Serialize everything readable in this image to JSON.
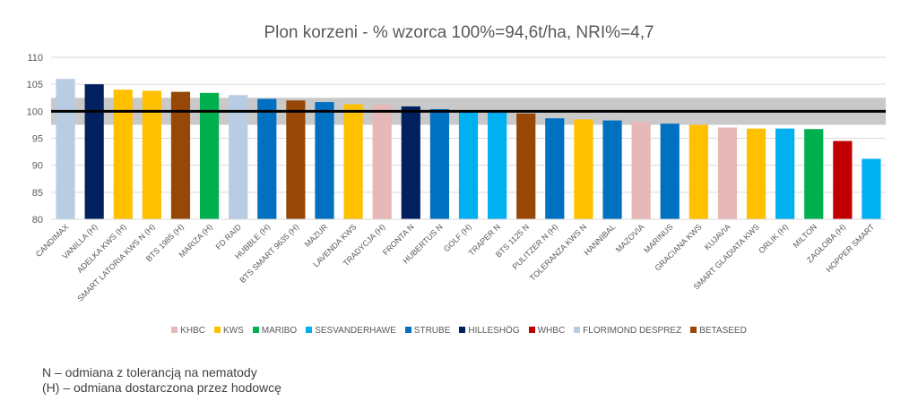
{
  "chart_data": {
    "type": "bar",
    "title": "Plon korzeni - % wzorca 100%=94,6t/ha, NRI%=4,7",
    "ylim": [
      80,
      110
    ],
    "yticks": [
      80,
      85,
      90,
      95,
      100,
      105,
      110
    ],
    "reference_line": 100,
    "reference_band": [
      97.5,
      102.5
    ],
    "colors": {
      "KHBC": "#E6B8B7",
      "KWS": "#FFC000",
      "MARIBO": "#00B050",
      "SESVANDERHAWE": "#00B0F0",
      "STRUBE": "#0070C0",
      "HILLESHÖG": "#002060",
      "WHBC": "#C00000",
      "FLORIMOND DESPREZ": "#B8CCE4",
      "BETASEED": "#974706"
    },
    "legend": [
      "KHBC",
      "KWS",
      "MARIBO",
      "SESVANDERHAWE",
      "STRUBE",
      "HILLESHÖG",
      "WHBC",
      "FLORIMOND DESPREZ",
      "BETASEED"
    ],
    "categories": [
      "CANDIMAX",
      "VANILLA (H)",
      "ADELKA KWS (H)",
      "SMART LATORIA KWS N (H)",
      "BTS 1985 (H)",
      "MARIZA (H)",
      "FD RAID",
      "HUBBLE (H)",
      "BTS SMART 9635 (H)",
      "MAZUR",
      "LAVENDA KWS",
      "TRADYCJA (H)",
      "FRONTA N",
      "HUBERTUS N",
      "GOLF (H)",
      "TRAPER N",
      "BTS 1125 N",
      "PULITZER N (H)",
      "TOLERANZA KWS N",
      "HANNIBAL",
      "MAZOVIA",
      "MARINUS",
      "GRACIANA KWS",
      "KUJAVIA",
      "SMART GLADIATA KWS",
      "ORLIK (H)",
      "MILTON",
      "ZAGŁOBA (H)",
      "HOPPER SMART"
    ],
    "values": [
      106.0,
      105.0,
      104.0,
      103.8,
      103.6,
      103.4,
      103.0,
      102.3,
      102.0,
      101.7,
      101.3,
      101.2,
      100.9,
      100.4,
      100.0,
      100.0,
      99.6,
      98.7,
      98.5,
      98.3,
      98.1,
      97.7,
      97.5,
      97.0,
      96.8,
      96.8,
      96.7,
      94.5,
      91.2
    ],
    "breeders": [
      "FLORIMOND DESPREZ",
      "HILLESHÖG",
      "KWS",
      "KWS",
      "BETASEED",
      "MARIBO",
      "FLORIMOND DESPREZ",
      "STRUBE",
      "BETASEED",
      "STRUBE",
      "KWS",
      "KHBC",
      "HILLESHÖG",
      "STRUBE",
      "SESVANDERHAWE",
      "SESVANDERHAWE",
      "BETASEED",
      "STRUBE",
      "KWS",
      "STRUBE",
      "KHBC",
      "STRUBE",
      "KWS",
      "KHBC",
      "KWS",
      "SESVANDERHAWE",
      "MARIBO",
      "WHBC",
      "SESVANDERHAWE"
    ]
  },
  "notes": {
    "line1": "N – odmiana z tolerancją na nematody",
    "line2": "(H) – odmiana dostarczona przez hodowcę"
  }
}
